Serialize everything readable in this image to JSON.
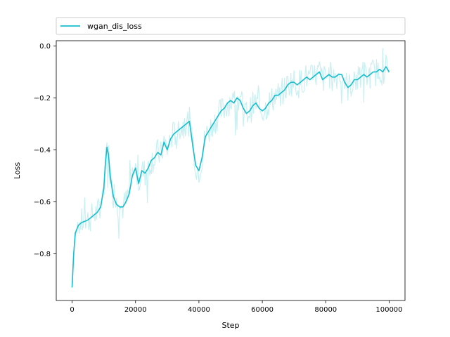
{
  "chart_data": {
    "type": "line",
    "xlabel": "Step",
    "ylabel": "Loss",
    "xlim": [
      -5000,
      105000
    ],
    "ylim": [
      -0.98,
      0.02
    ],
    "xticks": [
      0,
      20000,
      40000,
      60000,
      80000,
      100000
    ],
    "xtick_labels": [
      "0",
      "20000",
      "40000",
      "60000",
      "80000",
      "100000"
    ],
    "yticks": [
      0.0,
      -0.2,
      -0.4,
      -0.6,
      -0.8
    ],
    "ytick_labels": [
      "0.0",
      "−0.2",
      "−0.4",
      "−0.6",
      "−0.8"
    ],
    "grid": false,
    "legend_position": "top",
    "legend": {
      "entries": [
        "wgan_dis_loss"
      ]
    },
    "series": [
      {
        "name": "wgan_dis_loss",
        "color": "#17becf",
        "raw_color": "#c8f0f2",
        "x": [
          0,
          500,
          1000,
          2000,
          3000,
          4000,
          5000,
          6000,
          7000,
          8000,
          9000,
          10000,
          10500,
          11000,
          11500,
          12000,
          13000,
          14000,
          15000,
          16000,
          17000,
          18000,
          19000,
          20000,
          21000,
          22000,
          23000,
          24000,
          25000,
          26000,
          27000,
          28000,
          29000,
          30000,
          31000,
          32000,
          33000,
          34000,
          35000,
          36000,
          37000,
          38000,
          39000,
          40000,
          41000,
          42000,
          43000,
          44000,
          45000,
          46000,
          47000,
          48000,
          49000,
          50000,
          51000,
          52000,
          53000,
          54000,
          55000,
          56000,
          57000,
          58000,
          59000,
          60000,
          61000,
          62000,
          63000,
          64000,
          65000,
          66000,
          67000,
          68000,
          69000,
          70000,
          71000,
          72000,
          73000,
          74000,
          75000,
          76000,
          77000,
          78000,
          79000,
          80000,
          81000,
          82000,
          83000,
          84000,
          85000,
          86000,
          87000,
          88000,
          89000,
          90000,
          91000,
          92000,
          93000,
          94000,
          95000,
          96000,
          97000,
          98000,
          99000,
          100000
        ],
        "y": [
          -0.93,
          -0.8,
          -0.72,
          -0.69,
          -0.68,
          -0.675,
          -0.67,
          -0.66,
          -0.65,
          -0.64,
          -0.62,
          -0.55,
          -0.45,
          -0.39,
          -0.42,
          -0.5,
          -0.58,
          -0.61,
          -0.62,
          -0.62,
          -0.6,
          -0.57,
          -0.5,
          -0.47,
          -0.53,
          -0.48,
          -0.49,
          -0.47,
          -0.44,
          -0.43,
          -0.41,
          -0.42,
          -0.37,
          -0.4,
          -0.36,
          -0.34,
          -0.33,
          -0.32,
          -0.31,
          -0.3,
          -0.29,
          -0.38,
          -0.46,
          -0.48,
          -0.43,
          -0.35,
          -0.33,
          -0.31,
          -0.29,
          -0.27,
          -0.25,
          -0.24,
          -0.22,
          -0.21,
          -0.22,
          -0.2,
          -0.21,
          -0.24,
          -0.26,
          -0.25,
          -0.23,
          -0.22,
          -0.24,
          -0.25,
          -0.24,
          -0.22,
          -0.21,
          -0.19,
          -0.19,
          -0.18,
          -0.17,
          -0.15,
          -0.14,
          -0.14,
          -0.15,
          -0.14,
          -0.13,
          -0.12,
          -0.13,
          -0.12,
          -0.11,
          -0.1,
          -0.13,
          -0.12,
          -0.11,
          -0.12,
          -0.12,
          -0.11,
          -0.11,
          -0.14,
          -0.16,
          -0.15,
          -0.13,
          -0.13,
          -0.12,
          -0.11,
          -0.12,
          -0.11,
          -0.1,
          -0.1,
          -0.09,
          -0.1,
          -0.08,
          -0.1
        ]
      }
    ]
  }
}
